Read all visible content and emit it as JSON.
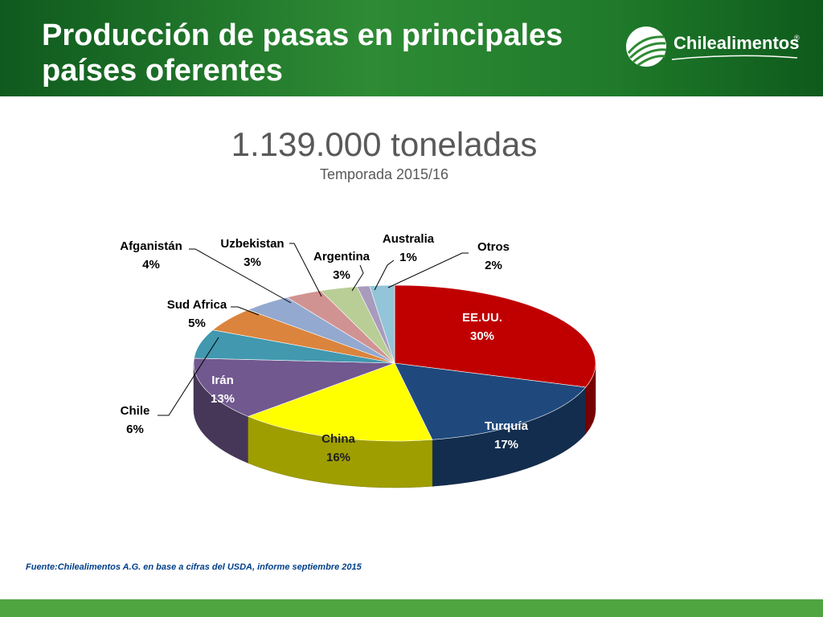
{
  "header": {
    "title": "Producción de pasas en principales países oferentes",
    "logo_text": "Chilealimentos",
    "logo_mark": "®"
  },
  "colors": {
    "header_green": "#1f7a2a",
    "footer_green": "#4fa540",
    "source_text": "#003f8a"
  },
  "chart_data": {
    "type": "pie",
    "title": "1.139.000 toneladas",
    "subtitle": "Temporada 2015/16",
    "slices": [
      {
        "label": "EE.UU.",
        "value": 30,
        "display": "30%",
        "color": "#c00000"
      },
      {
        "label": "Turquía",
        "value": 17,
        "display": "17%",
        "color": "#1f497d"
      },
      {
        "label": "China",
        "value": 16,
        "display": "16%",
        "color": "#ffff00"
      },
      {
        "label": "Irán",
        "value": 13,
        "display": "13%",
        "color": "#71588f"
      },
      {
        "label": "Chile",
        "value": 6,
        "display": "6%",
        "color": "#4198af"
      },
      {
        "label": "Sud Africa",
        "value": 5,
        "display": "5%",
        "color": "#db843d"
      },
      {
        "label": "Afganistán",
        "value": 4,
        "display": "4%",
        "color": "#93a9cf"
      },
      {
        "label": "Uzbekistan",
        "value": 3,
        "display": "3%",
        "color": "#d19392"
      },
      {
        "label": "Argentina",
        "value": 3,
        "display": "3%",
        "color": "#b9cd96"
      },
      {
        "label": "Australia",
        "value": 1,
        "display": "1%",
        "color": "#a99bbd"
      },
      {
        "label": "Otros",
        "value": 2,
        "display": "2%",
        "color": "#92c5d8"
      }
    ]
  },
  "source": "Fuente:Chilealimentos A.G. en base a cifras del USDA, informe septiembre 2015"
}
